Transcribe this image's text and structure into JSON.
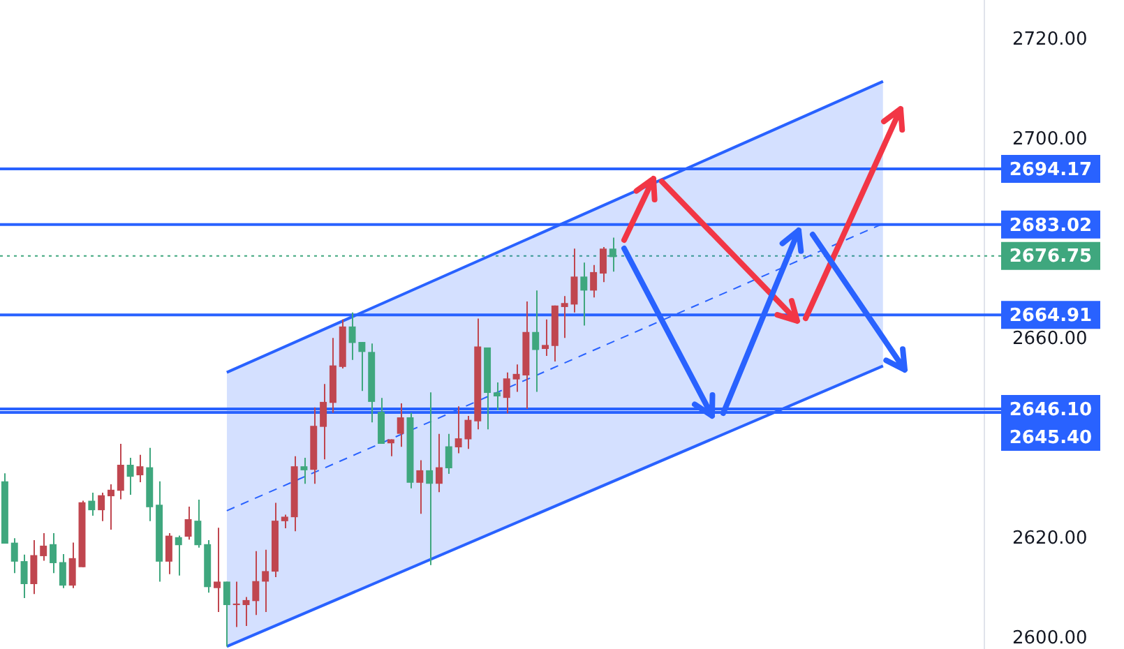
{
  "chart_data": {
    "type": "candlestick",
    "categories": [
      null,
      null,
      null,
      null,
      null,
      null,
      null,
      null,
      null,
      null,
      null,
      null,
      null,
      null,
      null,
      null,
      null,
      null,
      null,
      null,
      null,
      null,
      null,
      null,
      null,
      null,
      null,
      null,
      null,
      null,
      null,
      null,
      null,
      null,
      null,
      null,
      null,
      null,
      null,
      null,
      null,
      null,
      null,
      null,
      null,
      null,
      null,
      null,
      null,
      null,
      null,
      null,
      null,
      null,
      null,
      null,
      null,
      null,
      null,
      null,
      null,
      null,
      null,
      null,
      null,
      null,
      null,
      null,
      null,
      null,
      null,
      null,
      null,
      null,
      null,
      null,
      null,
      null,
      null,
      null,
      null,
      null,
      null,
      null,
      null,
      null,
      null,
      null,
      null,
      null,
      null,
      null,
      null,
      null,
      null,
      null,
      null,
      null,
      null,
      null,
      null,
      null
    ],
    "ohlc": [
      [
        2619.1,
        2633.2,
        2619.1,
        2631.6
      ],
      [
        2615.5,
        2620.2,
        2613.2,
        2619.3
      ],
      [
        2611.0,
        2616.9,
        2608.2,
        2615.6
      ],
      [
        2616.8,
        2619.8,
        2609.0,
        2611.0
      ],
      [
        2618.7,
        2621.2,
        2615.7,
        2616.6
      ],
      [
        2615.2,
        2621.2,
        2613.2,
        2619.0
      ],
      [
        2610.7,
        2617.0,
        2610.2,
        2615.4
      ],
      [
        2616.2,
        2619.3,
        2610.2,
        2610.7
      ],
      [
        2627.4,
        2627.7,
        2614.4,
        2614.4
      ],
      [
        2625.8,
        2629.3,
        2624.7,
        2627.7
      ],
      [
        2628.8,
        2629.3,
        2623.6,
        2625.8
      ],
      [
        2629.9,
        2631.0,
        2621.9,
        2628.6
      ],
      [
        2634.9,
        2639.1,
        2628.0,
        2629.7
      ],
      [
        2632.5,
        2636.3,
        2628.9,
        2634.9
      ],
      [
        2634.6,
        2636.9,
        2631.4,
        2632.8
      ],
      [
        2626.4,
        2638.3,
        2623.6,
        2634.4
      ],
      [
        2615.5,
        2631.6,
        2611.5,
        2626.9
      ],
      [
        2620.7,
        2621.2,
        2613.0,
        2615.5
      ],
      [
        2618.8,
        2620.7,
        2612.7,
        2620.4
      ],
      [
        2624.0,
        2626.5,
        2619.9,
        2620.5
      ],
      [
        2618.8,
        2627.9,
        2618.3,
        2623.7
      ],
      [
        2610.4,
        2619.8,
        2609.3,
        2619.0
      ],
      [
        2611.5,
        2622.3,
        2605.4,
        2610.2
      ],
      [
        2606.8,
        2611.5,
        2598.5,
        2611.5
      ],
      [
        2607.1,
        2611.5,
        2602.4,
        2606.8
      ],
      [
        2607.8,
        2608.4,
        2602.6,
        2606.8
      ],
      [
        2611.6,
        2617.6,
        2604.8,
        2607.6
      ],
      [
        2613.6,
        2617.9,
        2605.4,
        2611.5
      ],
      [
        2623.7,
        2627.3,
        2612.4,
        2613.5
      ],
      [
        2624.5,
        2624.9,
        2622.2,
        2623.6
      ],
      [
        2634.6,
        2636.6,
        2621.6,
        2624.4
      ],
      [
        2633.8,
        2636.3,
        2631.1,
        2634.6
      ],
      [
        2642.7,
        2646.4,
        2631.1,
        2633.9
      ],
      [
        2647.5,
        2651.1,
        2636.0,
        2642.5
      ],
      [
        2654.8,
        2660.3,
        2645.3,
        2647.3
      ],
      [
        2662.6,
        2664.0,
        2654.2,
        2654.5
      ],
      [
        2659.3,
        2665.4,
        2655.9,
        2662.6
      ],
      [
        2657.5,
        2659.5,
        2649.7,
        2659.5
      ],
      [
        2647.5,
        2659.2,
        2643.4,
        2657.5
      ],
      [
        2639.1,
        2648.3,
        2639.1,
        2645.5
      ],
      [
        2640.0,
        2640.0,
        2636.6,
        2639.2
      ],
      [
        2644.4,
        2647.2,
        2638.5,
        2641.1
      ],
      [
        2631.3,
        2645.3,
        2630.2,
        2644.4
      ],
      [
        2633.8,
        2635.8,
        2625.1,
        2631.3
      ],
      [
        2631.1,
        2649.4,
        2614.8,
        2633.8
      ],
      [
        2634.4,
        2641.1,
        2629.4,
        2631.1
      ],
      [
        2634.2,
        2641.1,
        2633.1,
        2638.6
      ],
      [
        2640.2,
        2646.6,
        2637.2,
        2638.4
      ],
      [
        2643.9,
        2644.7,
        2638.1,
        2640.0
      ],
      [
        2658.6,
        2664.2,
        2642.0,
        2643.6
      ],
      [
        2649.3,
        2658.4,
        2642.0,
        2658.4
      ],
      [
        2648.6,
        2651.4,
        2645.8,
        2649.4
      ],
      [
        2652.2,
        2653.4,
        2645.2,
        2648.3
      ],
      [
        2653.1,
        2655.0,
        2649.5,
        2652.0
      ],
      [
        2661.5,
        2667.6,
        2646.1,
        2652.8
      ],
      [
        2657.9,
        2669.8,
        2649.5,
        2661.5
      ],
      [
        2658.9,
        2664.0,
        2656.7,
        2658.1
      ],
      [
        2666.8,
        2666.8,
        2655.6,
        2658.7
      ],
      [
        2667.3,
        2668.7,
        2660.3,
        2666.5
      ],
      [
        2672.6,
        2678.2,
        2665.4,
        2667.0
      ],
      [
        2669.8,
        2675.4,
        2662.8,
        2672.6
      ],
      [
        2673.5,
        2674.9,
        2668.4,
        2669.8
      ],
      [
        2678.2,
        2678.5,
        2671.5,
        2673.2
      ],
      [
        2676.5,
        2680.4,
        2673.6,
        2678.2
      ],
      null,
      null,
      null,
      null,
      null,
      null,
      null,
      null,
      null,
      null,
      null,
      null,
      null,
      null,
      null,
      null,
      null,
      null,
      null,
      null,
      null,
      null,
      null,
      null,
      null,
      null,
      null,
      null,
      null,
      null,
      null,
      null,
      null,
      null,
      null,
      null,
      null,
      null
    ],
    "colors": [
      "#3fa77e",
      "#3fa77e",
      "#3fa77e",
      "#c0464f",
      "#c0464f",
      "#3fa77e",
      "#3fa77e",
      "#c0464f",
      "#c0464f",
      "#3fa77e",
      "#c0464f",
      "#c0464f",
      "#c0464f",
      "#3fa77e",
      "#c0464f",
      "#3fa77e",
      "#3fa77e",
      "#c0464f",
      "#3fa77e",
      "#c0464f",
      "#3fa77e",
      "#3fa77e",
      "#c0464f",
      "#3fa77e",
      "#c0464f",
      "#c0464f",
      "#c0464f",
      "#c0464f",
      "#c0464f",
      "#c0464f",
      "#c0464f",
      "#3fa77e",
      "#c0464f",
      "#c0464f",
      "#c0464f",
      "#c0464f",
      "#3fa77e",
      "#3fa77e",
      "#3fa77e",
      "#3fa77e",
      "#c0464f",
      "#c0464f",
      "#3fa77e",
      "#c0464f",
      "#3fa77e",
      "#c0464f",
      "#3fa77e",
      "#c0464f",
      "#c0464f",
      "#c0464f",
      "#3fa77e",
      "#3fa77e",
      "#c0464f",
      "#c0464f",
      "#c0464f",
      "#3fa77e",
      "#c0464f",
      "#c0464f",
      "#c0464f",
      "#c0464f",
      "#3fa77e",
      "#c0464f",
      "#c0464f",
      "#3fa77e",
      null,
      null,
      null,
      null,
      null,
      null,
      null,
      null,
      null,
      null,
      null,
      null,
      null,
      null,
      null,
      null,
      null,
      null,
      null,
      null,
      null,
      null,
      null,
      null,
      null,
      null,
      null,
      null,
      null,
      null,
      null,
      null,
      null,
      null,
      null,
      null,
      null,
      null
    ],
    "series": [
      {
        "type": "line",
        "color": "#2962ff",
        "line_style": "solid",
        "values": [
          null,
          null,
          null,
          null,
          null,
          null,
          null,
          null,
          null,
          null,
          null,
          null,
          null,
          null,
          null,
          null,
          null,
          null,
          null,
          null,
          null,
          null,
          null,
          2653.4,
          null,
          null,
          null,
          null,
          null,
          null,
          null,
          null,
          null,
          null,
          null,
          null,
          null,
          null,
          null,
          null,
          null,
          null,
          null,
          null,
          null,
          null,
          null,
          null,
          null,
          null,
          null,
          null,
          null,
          null,
          null,
          null,
          null,
          null,
          null,
          null,
          null,
          null,
          null,
          null,
          null,
          null,
          null,
          null,
          null,
          null,
          null,
          null,
          null,
          null,
          null,
          null,
          null,
          null,
          null,
          null,
          null,
          null,
          null,
          null,
          null,
          null,
          null,
          null,
          null,
          null,
          null,
          2711.7,
          null,
          null,
          null,
          null,
          null,
          null,
          null,
          null,
          null,
          null
        ]
      },
      {
        "type": "line",
        "color": "#2962ff",
        "line_style": "solid",
        "values": [
          null,
          null,
          null,
          null,
          null,
          null,
          null,
          null,
          null,
          null,
          null,
          null,
          null,
          null,
          null,
          null,
          null,
          null,
          null,
          null,
          null,
          null,
          null,
          2598.5,
          null,
          null,
          null,
          null,
          null,
          null,
          null,
          null,
          null,
          null,
          null,
          null,
          null,
          null,
          null,
          null,
          null,
          null,
          null,
          null,
          null,
          null,
          null,
          null,
          null,
          null,
          null,
          null,
          null,
          null,
          null,
          null,
          null,
          null,
          null,
          null,
          null,
          null,
          null,
          null,
          null,
          null,
          null,
          null,
          null,
          null,
          null,
          null,
          null,
          null,
          null,
          null,
          null,
          null,
          null,
          null,
          null,
          null,
          null,
          null,
          null,
          null,
          null,
          null,
          null,
          null,
          null,
          2654.7,
          null,
          null,
          null,
          null,
          null,
          null,
          null,
          null,
          null,
          null
        ]
      },
      {
        "type": "line",
        "color": "#2962ff",
        "line_style": "dashed",
        "values": [
          null,
          null,
          null,
          null,
          null,
          null,
          null,
          null,
          null,
          null,
          null,
          null,
          null,
          null,
          null,
          null,
          null,
          null,
          null,
          null,
          null,
          null,
          null,
          2625.7,
          null,
          null,
          null,
          null,
          null,
          null,
          null,
          null,
          null,
          null,
          null,
          null,
          null,
          null,
          null,
          null,
          null,
          null,
          null,
          null,
          null,
          null,
          null,
          null,
          null,
          null,
          null,
          null,
          null,
          null,
          null,
          null,
          null,
          null,
          null,
          null,
          null,
          null,
          null,
          null,
          null,
          null,
          null,
          null,
          null,
          null,
          null,
          null,
          null,
          null,
          null,
          null,
          null,
          null,
          null,
          null,
          null,
          null,
          null,
          null,
          null,
          null,
          null,
          null,
          null,
          null,
          null,
          2683.2,
          null,
          null,
          null,
          null,
          null,
          null,
          null,
          null,
          null,
          null
        ],
        "lower": [
          null,
          null,
          null,
          null,
          null,
          null,
          null,
          null,
          null,
          null,
          null,
          null,
          null,
          null,
          null,
          null,
          null,
          null,
          null,
          null,
          null,
          null,
          null,
          2598.5,
          null,
          null,
          null,
          null,
          null,
          null,
          null,
          null,
          null,
          null,
          null,
          null,
          null,
          null,
          null,
          null,
          null,
          null,
          null,
          null,
          null,
          null,
          null,
          null,
          null,
          null,
          null,
          null,
          null,
          null,
          null,
          null,
          null,
          null,
          null,
          null,
          null,
          null,
          null,
          null,
          null,
          null,
          null,
          null,
          null,
          null,
          null,
          null,
          null,
          null,
          null,
          null,
          null,
          null,
          null,
          null,
          null,
          null,
          null,
          null,
          null,
          null,
          null,
          null,
          null,
          null,
          null,
          2654.7,
          null,
          null,
          null,
          null,
          null,
          null,
          null,
          null,
          null,
          null
        ],
        "upper": [
          null,
          null,
          null,
          null,
          null,
          null,
          null,
          null,
          null,
          null,
          null,
          null,
          null,
          null,
          null,
          null,
          null,
          null,
          null,
          null,
          null,
          null,
          null,
          2653.4,
          null,
          null,
          null,
          null,
          null,
          null,
          null,
          null,
          null,
          null,
          null,
          null,
          null,
          null,
          null,
          null,
          null,
          null,
          null,
          null,
          null,
          null,
          null,
          null,
          null,
          null,
          null,
          null,
          null,
          null,
          null,
          null,
          null,
          null,
          null,
          null,
          null,
          null,
          null,
          null,
          null,
          null,
          null,
          null,
          null,
          null,
          null,
          null,
          null,
          null,
          null,
          null,
          null,
          null,
          null,
          null,
          null,
          null,
          null,
          null,
          null,
          null,
          null,
          null,
          null,
          null,
          null,
          2711.7,
          null,
          null,
          null,
          null,
          null,
          null,
          null,
          null,
          null,
          null
        ]
      }
    ],
    "ylim": [
      2598,
      2728
    ],
    "yticks": [
      {
        "value": 2600,
        "label": "2600.00"
      },
      {
        "value": 2620,
        "label": "2620.00"
      },
      {
        "value": 2660,
        "label": "2660.00"
      },
      {
        "value": 2700,
        "label": "2700.00"
      },
      {
        "value": 2720,
        "label": "2720.00"
      }
    ],
    "tick_labels": "y",
    "grid": false,
    "legend": false,
    "ref_lines": [
      {
        "axis": "y",
        "value": 2694.17,
        "label": "2694.17",
        "color": "#2962ff"
      },
      {
        "axis": "y",
        "value": 2683.02,
        "label": "2683.02",
        "color": "#2962ff"
      },
      {
        "axis": "y",
        "value": 2676.75,
        "label": "2676.75",
        "color": "#3fa77e",
        "line_style": "dotted"
      },
      {
        "axis": "y",
        "value": 2664.91,
        "label": "2664.91",
        "color": "#2962ff"
      },
      {
        "axis": "y",
        "value": 2646.1,
        "label": "2646.10",
        "color": "#2962ff"
      },
      {
        "axis": "y",
        "value": 2645.4,
        "label": "2645.40",
        "color": "#2962ff"
      }
    ]
  }
}
